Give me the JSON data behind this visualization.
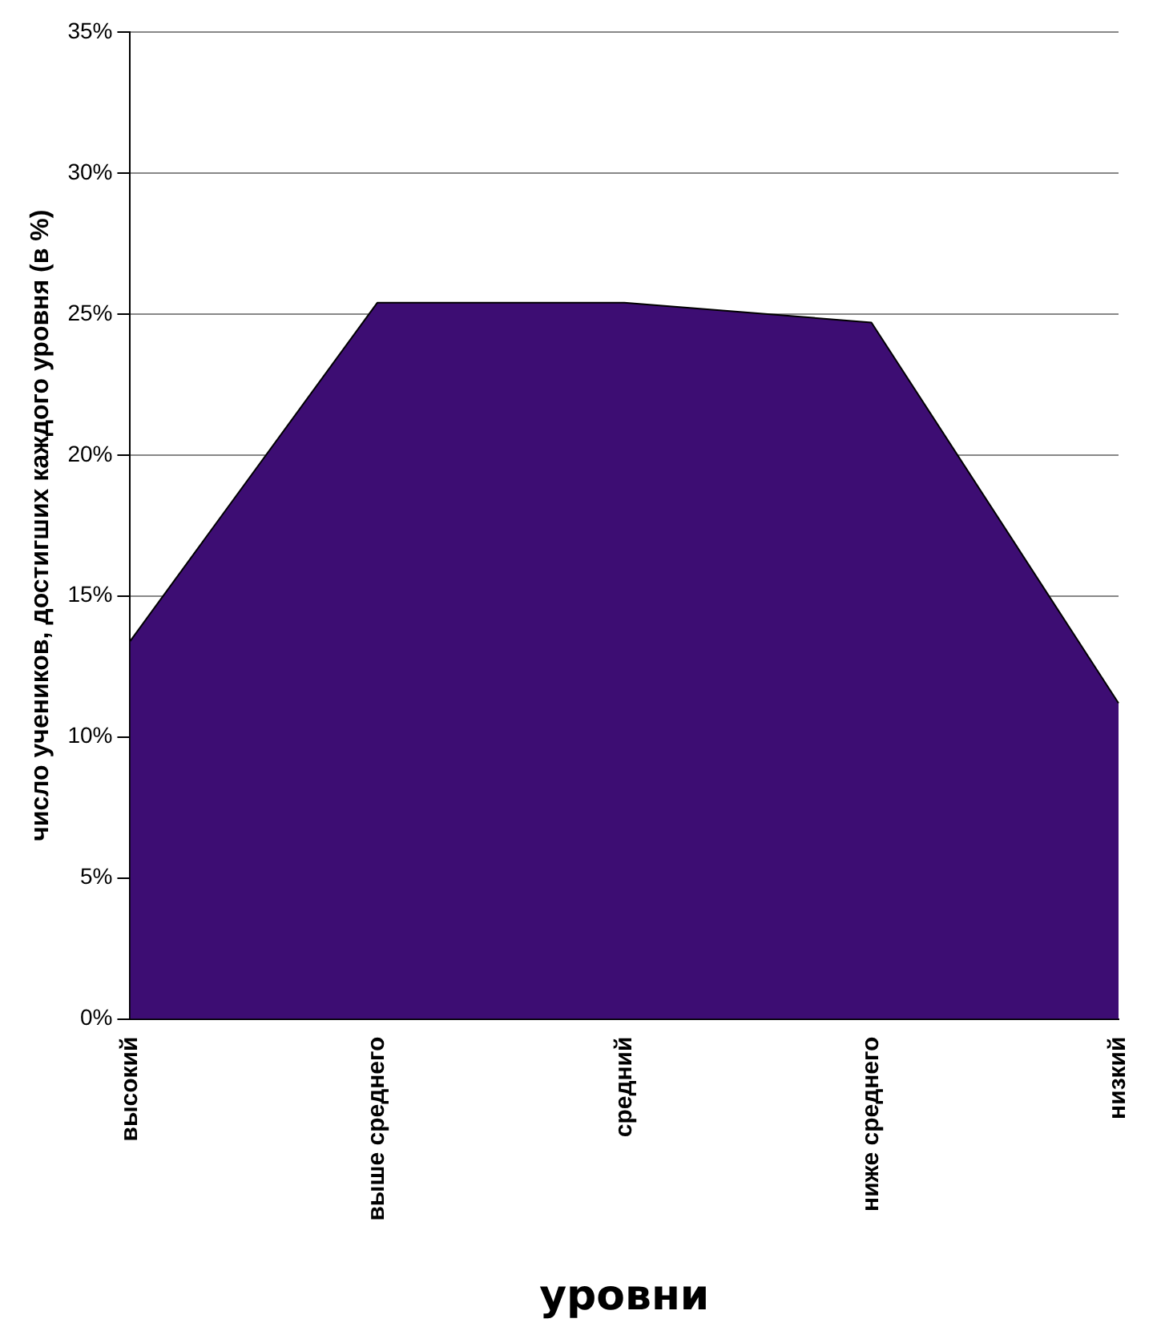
{
  "chart_data": {
    "type": "area",
    "xlabel": "уровни",
    "ylabel": "число учеников, достигших каждого уровня (в %)",
    "categories": [
      "высокий",
      "выше среднего",
      "средний",
      "ниже среднего",
      "низкий"
    ],
    "series": [
      {
        "color": "#3d0d73",
        "values": [
          13.4,
          25.4,
          25.4,
          24.7,
          11.2
        ]
      }
    ],
    "ylim": [
      0,
      35
    ],
    "yticks": [
      {
        "value": 0,
        "label": "0%"
      },
      {
        "value": 5,
        "label": "5%"
      },
      {
        "value": 10,
        "label": "10%"
      },
      {
        "value": 15,
        "label": "15%"
      },
      {
        "value": 20,
        "label": "20%"
      },
      {
        "value": 25,
        "label": "25%"
      },
      {
        "value": 30,
        "label": "30%"
      },
      {
        "value": 35,
        "label": "35%"
      }
    ],
    "grid": "y",
    "legend": false
  }
}
